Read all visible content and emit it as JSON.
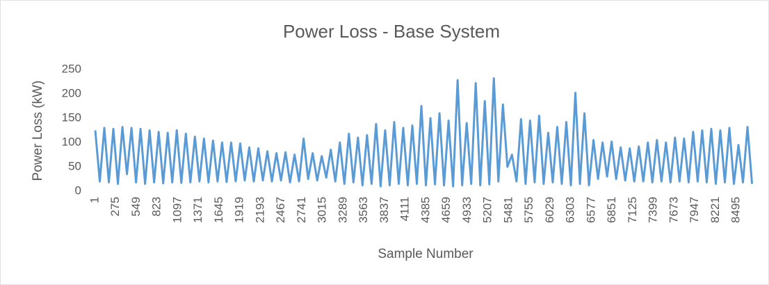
{
  "chart_data": {
    "type": "line",
    "title": "Power Loss - Base System",
    "x_label": "Sample Number",
    "y_label": "Power Loss (kW)",
    "xlim": [
      1,
      8760
    ],
    "xticks": [
      1,
      275,
      549,
      823,
      1097,
      1371,
      1645,
      1919,
      2193,
      2467,
      2741,
      3015,
      3289,
      3563,
      3837,
      4111,
      4385,
      4659,
      4933,
      5207,
      5481,
      5755,
      6029,
      6303,
      6577,
      6851,
      7125,
      7399,
      7673,
      7947,
      8221,
      8495
    ],
    "ylim": [
      0,
      250
    ],
    "yticks": [
      0,
      50,
      100,
      150,
      200,
      250
    ],
    "grid": false,
    "series": [
      {
        "name": "Power Loss",
        "color": "#5b9bd5",
        "x": [
          1,
          61,
          121,
          181,
          241,
          301,
          361,
          421,
          481,
          541,
          601,
          661,
          721,
          781,
          841,
          901,
          961,
          1021,
          1081,
          1141,
          1201,
          1261,
          1321,
          1381,
          1441,
          1501,
          1561,
          1621,
          1681,
          1741,
          1801,
          1861,
          1921,
          1981,
          2041,
          2101,
          2161,
          2221,
          2281,
          2341,
          2401,
          2461,
          2521,
          2581,
          2641,
          2701,
          2761,
          2821,
          2881,
          2941,
          3001,
          3061,
          3121,
          3181,
          3241,
          3301,
          3361,
          3421,
          3481,
          3541,
          3601,
          3661,
          3721,
          3781,
          3841,
          3901,
          3961,
          4021,
          4081,
          4141,
          4201,
          4261,
          4321,
          4381,
          4441,
          4501,
          4561,
          4621,
          4681,
          4741,
          4801,
          4861,
          4921,
          4981,
          5041,
          5101,
          5161,
          5221,
          5281,
          5341,
          5401,
          5461,
          5521,
          5581,
          5641,
          5701,
          5761,
          5821,
          5881,
          5941,
          6001,
          6061,
          6121,
          6181,
          6241,
          6301,
          6361,
          6421,
          6481,
          6541,
          6601,
          6661,
          6721,
          6781,
          6841,
          6901,
          6961,
          7021,
          7081,
          7141,
          7201,
          7261,
          7321,
          7381,
          7441,
          7501,
          7561,
          7621,
          7681,
          7741,
          7801,
          7861,
          7921,
          7981,
          8041,
          8101,
          8161,
          8221,
          8281,
          8341,
          8401,
          8461,
          8521,
          8581,
          8641,
          8701
        ],
        "values": [
          125,
          20,
          130,
          18,
          128,
          15,
          132,
          35,
          130,
          18,
          128,
          15,
          125,
          18,
          122,
          16,
          120,
          18,
          125,
          17,
          118,
          18,
          112,
          20,
          108,
          18,
          104,
          20,
          100,
          19,
          100,
          20,
          98,
          22,
          90,
          20,
          88,
          22,
          82,
          20,
          78,
          22,
          80,
          18,
          75,
          20,
          108,
          25,
          78,
          22,
          72,
          28,
          85,
          20,
          100,
          15,
          118,
          18,
          110,
          12,
          115,
          15,
          138,
          10,
          125,
          12,
          142,
          15,
          130,
          12,
          135,
          15,
          175,
          12,
          150,
          14,
          160,
          12,
          145,
          10,
          228,
          12,
          140,
          15,
          222,
          12,
          185,
          14,
          232,
          20,
          178,
          50,
          75,
          20,
          148,
          15,
          145,
          18,
          155,
          15,
          120,
          18,
          132,
          15,
          142,
          12,
          202,
          15,
          160,
          12,
          105,
          25,
          100,
          30,
          102,
          25,
          90,
          22,
          88,
          20,
          92,
          20,
          100,
          18,
          105,
          20,
          100,
          18,
          110,
          20,
          108,
          18,
          122,
          20,
          125,
          18,
          128,
          15,
          125,
          18,
          130,
          15,
          95,
          18,
          132,
          15
        ]
      }
    ]
  }
}
